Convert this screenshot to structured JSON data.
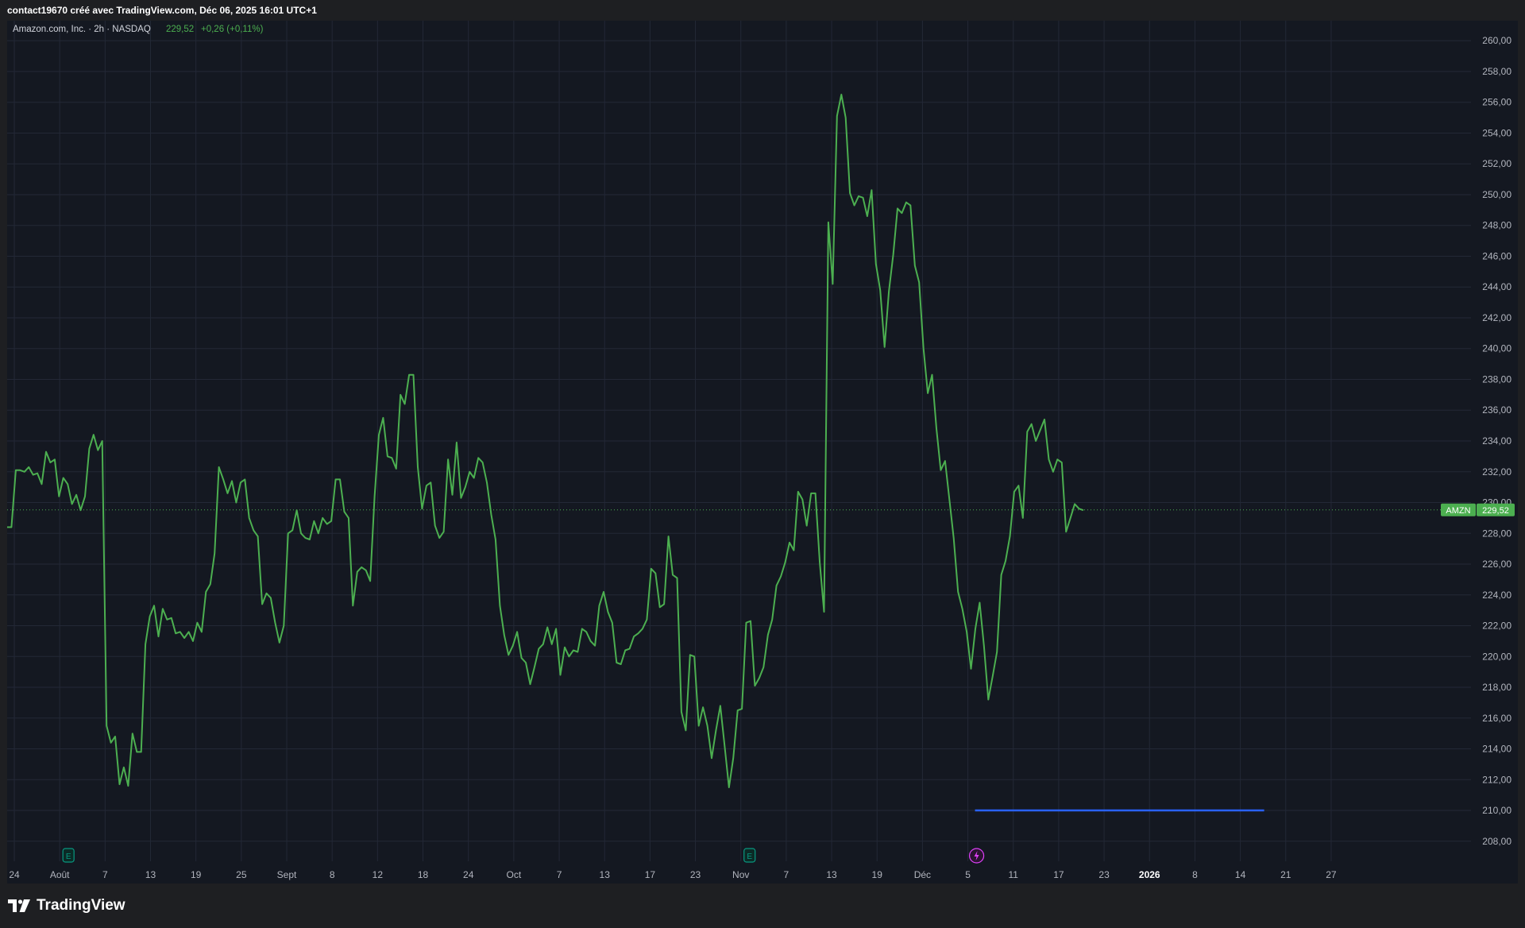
{
  "header": {
    "caption": "contact19670 créé avec TradingView.com, Déc 06, 2025 16:01 UTC+1"
  },
  "legend": {
    "symbol": "Amazon.com, Inc. · 2h · NASDAQ",
    "price": "229,52",
    "change": "+0,26 (+0,11%)"
  },
  "price_tag": {
    "ticker": "AMZN",
    "value": "229,52"
  },
  "footer": {
    "brand": "TradingView"
  },
  "colors": {
    "background": "#141821",
    "line": "#4caf50",
    "grid": "#232836",
    "axis_text": "#b2b5be",
    "earnings_marker": "#089981",
    "dividend_marker": "#e040fb",
    "horizontal_line": "#2962ff"
  },
  "icons": [
    "earnings-icon",
    "split-icon",
    "tradingview-logo-icon"
  ],
  "chart_data": {
    "type": "line",
    "interval": "2h",
    "y_ticks": [
      "260,00",
      "258,00",
      "256,00",
      "254,00",
      "252,00",
      "250,00",
      "248,00",
      "246,00",
      "244,00",
      "242,00",
      "240,00",
      "238,00",
      "236,00",
      "234,00",
      "232,00",
      "230,00",
      "228,00",
      "226,00",
      "224,00",
      "222,00",
      "220,00",
      "218,00",
      "216,00",
      "214,00",
      "212,00",
      "210,00",
      "208,00"
    ],
    "ylim": [
      206.7,
      261.3
    ],
    "x_ticks": [
      {
        "label": "24",
        "bold": false
      },
      {
        "label": "Août",
        "bold": false
      },
      {
        "label": "7",
        "bold": false
      },
      {
        "label": "13",
        "bold": false
      },
      {
        "label": "19",
        "bold": false
      },
      {
        "label": "25",
        "bold": false
      },
      {
        "label": "Sept",
        "bold": false
      },
      {
        "label": "8",
        "bold": false
      },
      {
        "label": "12",
        "bold": false
      },
      {
        "label": "18",
        "bold": false
      },
      {
        "label": "24",
        "bold": false
      },
      {
        "label": "Oct",
        "bold": false
      },
      {
        "label": "7",
        "bold": false
      },
      {
        "label": "13",
        "bold": false
      },
      {
        "label": "17",
        "bold": false
      },
      {
        "label": "23",
        "bold": false
      },
      {
        "label": "Nov",
        "bold": false
      },
      {
        "label": "7",
        "bold": false
      },
      {
        "label": "13",
        "bold": false
      },
      {
        "label": "19",
        "bold": false
      },
      {
        "label": "Déc",
        "bold": false
      },
      {
        "label": "5",
        "bold": false
      },
      {
        "label": "11",
        "bold": false
      },
      {
        "label": "17",
        "bold": false
      },
      {
        "label": "23",
        "bold": false
      },
      {
        "label": "2026",
        "bold": true
      },
      {
        "label": "8",
        "bold": false
      },
      {
        "label": "14",
        "bold": false
      },
      {
        "label": "21",
        "bold": false
      },
      {
        "label": "27",
        "bold": false
      }
    ],
    "last_price": 229.52,
    "horizontal_line": {
      "value": 210.0,
      "from_tick": "5",
      "to_tick": "14"
    },
    "event_markers": [
      {
        "type": "earnings",
        "label": "E",
        "near_tick": "Août"
      },
      {
        "type": "earnings",
        "label": "E",
        "near_tick": "Nov"
      },
      {
        "type": "split",
        "label": "",
        "near_tick": "5"
      }
    ],
    "series": [
      {
        "values": [
          228.4,
          228.4,
          232.1,
          232.1,
          232.0,
          232.3,
          231.8,
          231.9,
          231.2,
          233.3,
          232.6,
          232.8,
          230.4,
          231.6,
          231.2,
          229.9,
          230.5,
          229.5,
          230.4,
          233.5,
          234.4,
          233.4,
          234.0,
          215.5,
          214.4,
          214.8,
          211.7,
          212.8,
          211.6,
          215.0,
          213.8,
          213.8,
          220.8,
          222.6,
          223.3,
          221.3,
          223.1,
          222.4,
          222.5,
          221.5,
          221.6,
          221.2,
          221.6,
          221.0,
          222.2,
          221.6,
          224.2,
          224.7,
          226.7,
          232.3,
          231.5,
          230.6,
          231.4,
          230.0,
          231.3,
          231.5,
          229.0,
          228.2,
          227.8,
          223.4,
          224.1,
          223.8,
          222.2,
          220.9,
          222.0,
          228.0,
          228.2,
          229.5,
          228.0,
          227.7,
          227.6,
          228.8,
          228.0,
          229.0,
          228.6,
          228.8,
          231.5,
          231.5,
          229.4,
          229.0,
          223.3,
          225.5,
          225.8,
          225.6,
          224.9,
          230.4,
          234.4,
          235.5,
          233.0,
          232.9,
          232.2,
          237.0,
          236.4,
          238.3,
          238.3,
          232.3,
          229.6,
          231.1,
          231.3,
          228.5,
          227.7,
          228.1,
          232.8,
          230.5,
          233.9,
          230.3,
          231.0,
          232.0,
          231.6,
          232.9,
          232.6,
          231.3,
          229.2,
          227.6,
          223.3,
          221.4,
          220.1,
          220.7,
          221.6,
          219.9,
          219.6,
          218.2,
          219.3,
          220.5,
          220.8,
          221.9,
          220.8,
          221.8,
          218.8,
          220.6,
          220.0,
          220.4,
          220.3,
          221.8,
          221.6,
          221.0,
          220.7,
          223.3,
          224.2,
          222.9,
          222.2,
          219.6,
          219.5,
          220.4,
          220.5,
          221.3,
          221.5,
          221.8,
          222.4,
          225.7,
          225.4,
          223.2,
          223.4,
          227.8,
          225.3,
          225.1,
          216.4,
          215.2,
          220.1,
          220.0,
          215.5,
          216.7,
          215.5,
          213.4,
          215.2,
          216.8,
          214.2,
          211.5,
          213.4,
          216.5,
          216.6,
          222.2,
          222.3,
          218.1,
          218.6,
          219.3,
          221.4,
          222.4,
          224.6,
          225.2,
          226.1,
          227.4,
          226.9,
          230.7,
          230.2,
          228.5,
          230.6,
          230.6,
          226.1,
          222.9,
          248.2,
          244.2,
          255.1,
          256.5,
          255.0,
          250.1,
          249.3,
          249.9,
          249.8,
          248.6,
          250.3,
          245.5,
          243.8,
          240.1,
          243.7,
          246.1,
          249.1,
          248.8,
          249.5,
          249.3,
          245.4,
          244.3,
          240.0,
          237.1,
          238.3,
          234.8,
          232.1,
          232.7,
          230.2,
          227.7,
          224.2,
          223.1,
          221.6,
          219.2,
          221.8,
          223.5,
          220.7,
          217.2,
          218.7,
          220.3,
          225.3,
          226.2,
          227.8,
          230.7,
          231.1,
          229.0,
          234.6,
          235.1,
          234.0,
          234.7,
          235.4,
          232.8,
          232.0,
          232.8,
          232.6,
          228.1,
          229.0,
          229.9,
          229.6,
          229.5
        ]
      }
    ]
  }
}
